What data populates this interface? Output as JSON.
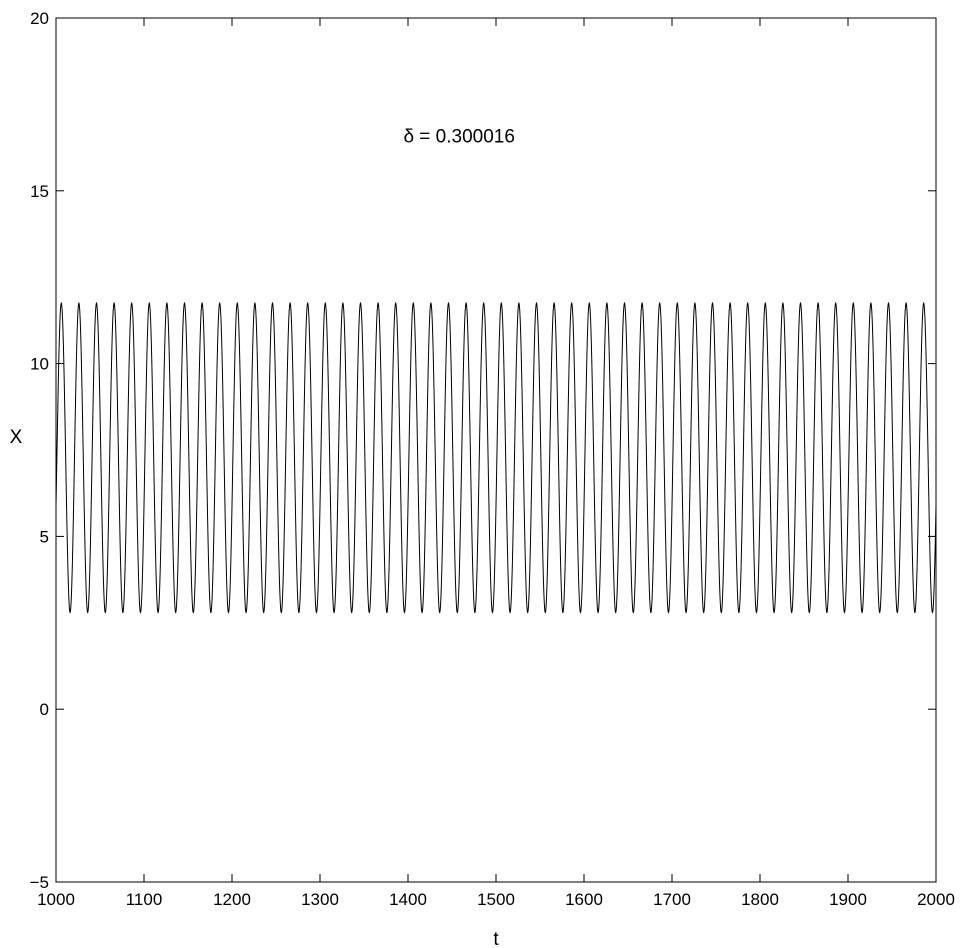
{
  "chart_data": {
    "type": "line",
    "title": "",
    "xlabel": "t",
    "ylabel": "X",
    "xlim": [
      1000,
      2000
    ],
    "ylim": [
      -5,
      20
    ],
    "xticks": [
      1000,
      1100,
      1200,
      1300,
      1400,
      1500,
      1600,
      1700,
      1800,
      1900,
      2000
    ],
    "xtick_labels": [
      "1000",
      "1100",
      "1200",
      "1300",
      "1400",
      "1500",
      "1600",
      "1700",
      "1800",
      "1900",
      "2000"
    ],
    "yticks": [
      -5,
      0,
      5,
      10,
      15,
      20
    ],
    "ytick_labels": [
      "−5",
      "0",
      "5",
      "10",
      "15",
      "20"
    ],
    "grid": false,
    "annotation": {
      "text": "δ = 0.300016",
      "x": 1390,
      "y": 16.6
    },
    "series": [
      {
        "color": "#000000",
        "signal": {
          "form": "sinusoid",
          "min": 2.8,
          "max": 11.75,
          "period": 20,
          "peak_at": 1006
        }
      }
    ]
  }
}
